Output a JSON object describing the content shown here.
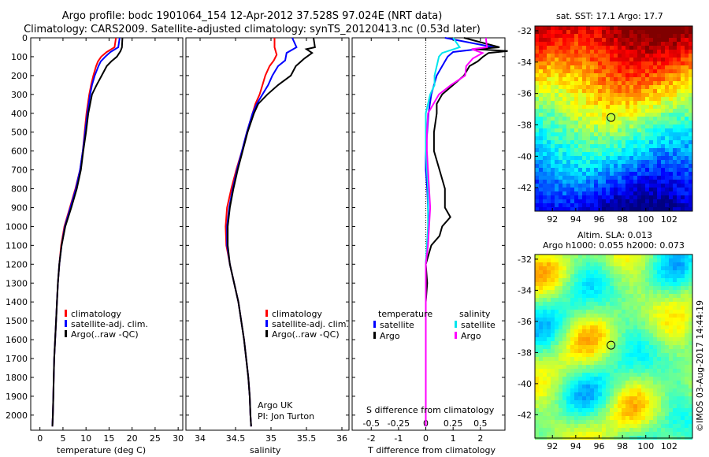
{
  "header": {
    "line1": "Argo profile: bodc 1901064_154 12-Apr-2012 37.528S 97.024E (NRT data)",
    "line2": "Climatology: CARS2009. Satellite-adjusted climatology: synTS_20120413.nc (0.53d later)"
  },
  "colors": {
    "climatology": "#ff0000",
    "satellite": "#0000ff",
    "argo": "#000000",
    "satellite_salinity": "#00e5ee",
    "argo_salinity": "#ff00ff"
  },
  "chart_data": [
    {
      "type": "line",
      "id": "temperature",
      "xlabel": "temperature (deg C)",
      "ylabel": "",
      "xlim": [
        -2,
        31
      ],
      "ylim": [
        0,
        2080
      ],
      "xticks": [
        0,
        5,
        10,
        15,
        20,
        25,
        30
      ],
      "yticks": [
        0,
        100,
        200,
        300,
        400,
        500,
        600,
        700,
        800,
        900,
        1000,
        1100,
        1200,
        1300,
        1400,
        1500,
        1600,
        1700,
        1800,
        1900,
        2000
      ],
      "legend": [
        "climatology",
        "satellite-adj. clim.",
        "Argo(..raw -QC)"
      ],
      "series": [
        {
          "name": "climatology",
          "depth": [
            0,
            50,
            75,
            100,
            125,
            150,
            200,
            250,
            300,
            400,
            500,
            600,
            700,
            800,
            900,
            1000,
            1100,
            1200,
            1300,
            1400,
            1500,
            1600,
            1700,
            1800,
            1900,
            2000,
            2060
          ],
          "values": [
            16.5,
            16.2,
            14.5,
            13.3,
            12.6,
            12.2,
            11.6,
            11.1,
            10.7,
            10.1,
            9.7,
            9.3,
            8.7,
            7.7,
            6.5,
            5.3,
            4.6,
            4.2,
            3.9,
            3.7,
            3.5,
            3.3,
            3.1,
            3.0,
            2.9,
            2.8,
            2.7
          ]
        },
        {
          "name": "satellite-adj. clim.",
          "depth": [
            0,
            50,
            75,
            100,
            125,
            150,
            200,
            250,
            300,
            400,
            500,
            600,
            700,
            800,
            900,
            1000,
            1100,
            1200,
            1300,
            1400,
            1500,
            1600,
            1700,
            1800,
            1900,
            2000,
            2060
          ],
          "values": [
            17.3,
            17.0,
            15.3,
            14.2,
            13.2,
            12.7,
            11.9,
            11.3,
            10.9,
            10.3,
            9.8,
            9.3,
            8.7,
            7.8,
            6.6,
            5.4,
            4.7,
            4.2,
            3.9,
            3.7,
            3.5,
            3.3,
            3.1,
            3.0,
            2.9,
            2.8,
            2.7
          ]
        },
        {
          "name": "Argo(..raw -QC)",
          "depth": [
            0,
            50,
            70,
            100,
            125,
            150,
            200,
            250,
            300,
            400,
            500,
            600,
            700,
            800,
            900,
            1000,
            1100,
            1200,
            1300,
            1400,
            1500,
            1600,
            1700,
            1800,
            1900,
            2000,
            2060
          ],
          "values": [
            17.9,
            17.8,
            17.5,
            16.7,
            15.5,
            14.5,
            13.4,
            12.3,
            11.3,
            10.5,
            10.0,
            9.4,
            8.9,
            8.0,
            6.8,
            5.5,
            4.7,
            4.2,
            3.9,
            3.7,
            3.5,
            3.3,
            3.1,
            3.0,
            2.9,
            2.8,
            2.7
          ]
        }
      ]
    },
    {
      "type": "line",
      "id": "salinity",
      "xlabel": "salinity",
      "ylabel": "",
      "xlim": [
        33.8,
        36.1
      ],
      "ylim": [
        0,
        2080
      ],
      "xticks": [
        34,
        34.5,
        35,
        35.5,
        36
      ],
      "legend": [
        "climatology",
        "satellite-adj. clim.",
        "Argo(..raw -QC)"
      ],
      "annotation": [
        "Argo UK",
        "PI: Jon Turton"
      ],
      "series": [
        {
          "name": "climatology",
          "depth": [
            0,
            50,
            90,
            120,
            150,
            200,
            250,
            300,
            350,
            400,
            500,
            600,
            700,
            800,
            900,
            1000,
            1100,
            1200,
            1300,
            1400,
            1500,
            1600,
            1700,
            1800,
            1900,
            2000,
            2060
          ],
          "values": [
            35.05,
            35.05,
            35.08,
            35.04,
            34.98,
            34.92,
            34.88,
            34.84,
            34.78,
            34.74,
            34.66,
            34.59,
            34.51,
            34.44,
            34.38,
            34.36,
            34.37,
            34.42,
            34.48,
            34.54,
            34.58,
            34.62,
            34.65,
            34.68,
            34.7,
            34.71,
            34.72
          ]
        },
        {
          "name": "satellite-adj. clim.",
          "depth": [
            0,
            50,
            80,
            120,
            150,
            200,
            250,
            300,
            350,
            400,
            500,
            600,
            700,
            800,
            900,
            1000,
            1100,
            1200,
            1300,
            1400,
            1500,
            1600,
            1700,
            1800,
            1900,
            2000,
            2060
          ],
          "values": [
            35.3,
            35.36,
            35.22,
            35.2,
            35.1,
            35.02,
            34.96,
            34.88,
            34.8,
            34.74,
            34.66,
            34.59,
            34.52,
            34.46,
            34.41,
            34.38,
            34.38,
            34.42,
            34.48,
            34.54,
            34.58,
            34.62,
            34.65,
            34.68,
            34.7,
            34.71,
            34.72
          ]
        },
        {
          "name": "Argo(..raw -QC)",
          "depth": [
            0,
            50,
            60,
            80,
            110,
            150,
            200,
            250,
            300,
            350,
            400,
            500,
            600,
            700,
            800,
            900,
            1000,
            1100,
            1200,
            1300,
            1400,
            1500,
            1600,
            1700,
            1800,
            1900,
            2000,
            2060
          ],
          "values": [
            35.6,
            35.62,
            35.5,
            35.58,
            35.47,
            35.35,
            35.28,
            35.1,
            34.95,
            34.82,
            34.76,
            34.67,
            34.6,
            34.53,
            34.47,
            34.42,
            34.39,
            34.39,
            34.42,
            34.48,
            34.54,
            34.58,
            34.62,
            34.65,
            34.68,
            34.7,
            34.71,
            34.72
          ]
        }
      ]
    },
    {
      "type": "line",
      "id": "difference",
      "xlabel": "T difference from climatology",
      "x2label": "S difference from climatology",
      "xlim": [
        -2.7,
        2.9
      ],
      "ylim": [
        0,
        2080
      ],
      "xticks": [
        -2,
        -1,
        0,
        1,
        2
      ],
      "xtick_labels": [
        "-2",
        "-1",
        "0",
        "1",
        "2"
      ],
      "x2ticks": [
        -0.5,
        -0.25,
        0,
        0.25,
        0.5
      ],
      "x2tick_labels": [
        "-0.5",
        "-0.25",
        "0",
        "0.25",
        "0.5"
      ],
      "legend": {
        "temperature_title": "temperature",
        "salinity_title": "salinity",
        "satellite": "satellite",
        "argo": "Argo"
      },
      "series": [
        {
          "name": "temperature satellite",
          "depth": [
            0,
            50,
            75,
            100,
            150,
            200,
            250,
            300,
            400,
            500,
            600,
            700,
            800,
            900,
            1000,
            1100,
            1200,
            1300,
            1400,
            1500,
            1600,
            1700,
            1800,
            1900,
            2000,
            2060
          ],
          "values": [
            0.7,
            2.5,
            1.0,
            0.8,
            0.6,
            0.4,
            0.3,
            0.2,
            0.1,
            0.05,
            0.0,
            0.0,
            0.05,
            0.08,
            0.1,
            0.05,
            0.0,
            0.0,
            0.0,
            0.0,
            0.0,
            0.0,
            0.0,
            0.0,
            0.0,
            0.0
          ]
        },
        {
          "name": "temperature Argo",
          "depth": [
            0,
            50,
            60,
            70,
            80,
            100,
            125,
            150,
            200,
            250,
            300,
            350,
            400,
            500,
            600,
            700,
            800,
            900,
            950,
            1000,
            1050,
            1100,
            1200,
            1300,
            1400,
            1500,
            1600,
            1700,
            1800,
            1900,
            2000,
            2060
          ],
          "values": [
            1.4,
            2.7,
            1.8,
            3.0,
            2.3,
            2.1,
            1.9,
            1.6,
            1.4,
            1.0,
            0.6,
            0.4,
            0.4,
            0.3,
            0.3,
            0.5,
            0.7,
            0.7,
            0.9,
            0.6,
            0.5,
            0.2,
            0.0,
            0.05,
            0.0,
            0.0,
            0.0,
            0.0,
            0.0,
            0.0,
            0.0,
            0.0
          ]
        },
        {
          "name": "salinity satellite",
          "depth": [
            0,
            50,
            80,
            100,
            150,
            200,
            250,
            300,
            400,
            500,
            600,
            700,
            800,
            900,
            1000,
            1100,
            1200,
            1300,
            1400,
            1500,
            1600,
            1700,
            1800,
            1900,
            2000,
            2060
          ],
          "values": [
            0.25,
            0.31,
            0.15,
            0.12,
            0.1,
            0.08,
            0.08,
            0.04,
            0.0,
            0.0,
            0.0,
            0.01,
            0.02,
            0.02,
            0.02,
            0.01,
            0.0,
            0.0,
            0.0,
            0.0,
            0.0,
            0.0,
            0.0,
            0.0,
            0.0,
            0.0
          ]
        },
        {
          "name": "salinity Argo",
          "depth": [
            0,
            50,
            60,
            80,
            110,
            150,
            200,
            250,
            300,
            400,
            500,
            600,
            700,
            800,
            900,
            1000,
            1100,
            1200,
            1300,
            1400,
            1500,
            1600,
            1700,
            1800,
            1900,
            2000,
            2060
          ],
          "values": [
            0.55,
            0.56,
            0.42,
            0.52,
            0.43,
            0.37,
            0.36,
            0.23,
            0.12,
            0.02,
            0.01,
            0.01,
            0.02,
            0.03,
            0.04,
            0.03,
            0.02,
            0.0,
            0.0,
            0.0,
            0.0,
            0.0,
            0.0,
            0.0,
            0.0,
            0.0,
            0.0
          ]
        }
      ]
    },
    {
      "type": "heatmap",
      "id": "sst_map",
      "title": "sat. SST: 17.1  Argo: 17.7",
      "xlim": [
        90.5,
        104
      ],
      "ylim": [
        -43.5,
        -31.7
      ],
      "xticks": [
        92,
        94,
        96,
        98,
        100,
        102
      ],
      "yticks": [
        -32,
        -34,
        -36,
        -38,
        -40,
        -42
      ],
      "marker": [
        97.024,
        -37.528
      ]
    },
    {
      "type": "heatmap",
      "id": "sla_map",
      "title": "Altim. SLA: 0.013",
      "subtitle": "Argo h1000: 0.055 h2000: 0.073",
      "xlim": [
        90.5,
        104
      ],
      "ylim": [
        -43.5,
        -31.7
      ],
      "xticks": [
        92,
        94,
        96,
        98,
        100,
        102
      ],
      "yticks": [
        -32,
        -34,
        -36,
        -38,
        -40,
        -42
      ],
      "marker": [
        97.024,
        -37.528
      ]
    }
  ],
  "credit": "©IMOS 03-Aug-2017 14:44:19"
}
